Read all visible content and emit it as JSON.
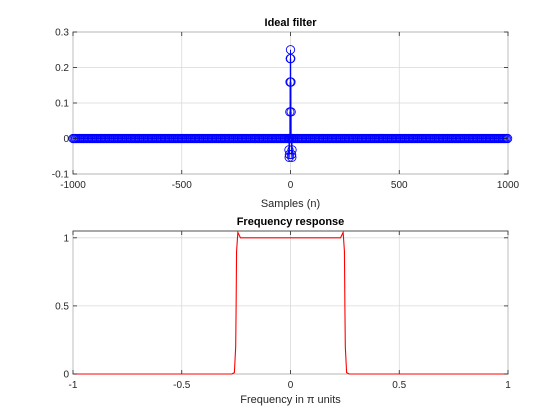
{
  "chart_data": [
    {
      "type": "stem",
      "title": "Ideal filter",
      "xlabel": "Samples (n)",
      "ylabel": "",
      "xlim": [
        -1000,
        1000
      ],
      "ylim": [
        -0.1,
        0.3
      ],
      "xticks": [
        "-1000",
        "-500",
        "0",
        "500",
        "1000"
      ],
      "yticks": [
        "-0.1",
        "0",
        "0.1",
        "0.2",
        "0.3"
      ],
      "grid": true,
      "color": "#0000ff",
      "x": [
        -8,
        -7,
        -6,
        -5,
        -4,
        -3,
        -2,
        -1,
        0,
        1,
        2,
        3,
        4,
        5,
        6,
        7,
        8
      ],
      "y": [
        0.0,
        -0.032,
        -0.053,
        -0.045,
        0.0,
        0.075,
        0.159,
        0.225,
        0.25,
        0.225,
        0.159,
        0.075,
        0.0,
        -0.045,
        -0.053,
        -0.032,
        0.0
      ],
      "x_range_all": [
        -1000,
        1000
      ],
      "y_outside": 0
    },
    {
      "type": "line",
      "title": "Frequency response",
      "xlabel": "Frequency  in  π  units",
      "ylabel": "",
      "xlim": [
        -1,
        1
      ],
      "ylim": [
        0,
        1.05
      ],
      "xticks": [
        "-1",
        "-0.5",
        "0",
        "0.5",
        "1"
      ],
      "yticks": [
        "0",
        "0.5",
        "1"
      ],
      "grid": true,
      "color": "#ff0000",
      "x": [
        -1,
        -0.27,
        -0.258,
        -0.252,
        -0.25,
        -0.248,
        -0.242,
        -0.23,
        0.0,
        0.23,
        0.242,
        0.248,
        0.25,
        0.252,
        0.258,
        0.27,
        1
      ],
      "y": [
        0.0,
        0.0,
        0.01,
        0.2,
        0.5,
        0.9,
        1.04,
        1.0,
        1.0,
        1.0,
        1.04,
        0.9,
        0.5,
        0.2,
        0.01,
        0.0,
        0.0
      ]
    }
  ]
}
